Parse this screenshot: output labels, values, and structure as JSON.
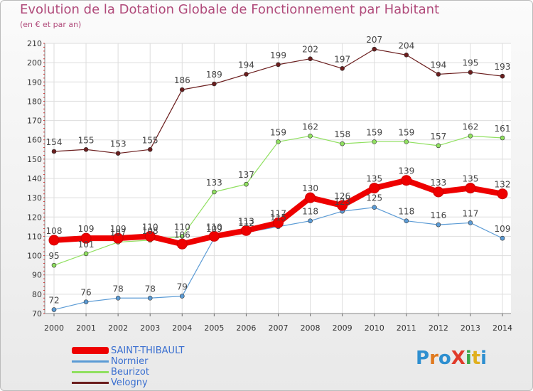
{
  "title": "Evolution de la Dotation Globale de Fonctionnement par Habitant",
  "subtitle": "(en € et par an)",
  "logo_text": "ProXiti",
  "logo_colors": [
    "#2e8fd0",
    "#e07a1f",
    "#2e8fd0",
    "#e03a2a",
    "#3aa84a",
    "#e0b01f",
    "#2e8fd0"
  ],
  "chart_data": {
    "type": "line",
    "x": [
      2000,
      2001,
      2002,
      2003,
      2004,
      2005,
      2006,
      2007,
      2008,
      2009,
      2010,
      2011,
      2012,
      2013,
      2014
    ],
    "ylim": [
      70,
      210
    ],
    "yticks": [
      70,
      80,
      90,
      100,
      110,
      120,
      130,
      140,
      150,
      160,
      170,
      180,
      190,
      200,
      210
    ],
    "grid": true,
    "legend_position": "bottom-left",
    "series": [
      {
        "name": "SAINT-THIBAULT",
        "color": "#ee0000",
        "values": [
          108,
          109,
          109,
          110,
          106,
          110,
          113,
          117,
          130,
          126,
          135,
          139,
          133,
          135,
          132
        ]
      },
      {
        "name": "Normier",
        "color": "#5b9bd5",
        "values": [
          72,
          76,
          78,
          78,
          79,
          109,
          112,
          115,
          118,
          123,
          125,
          118,
          116,
          117,
          109
        ]
      },
      {
        "name": "Beurizot",
        "color": "#90e060",
        "values": [
          95,
          101,
          107,
          108,
          110,
          133,
          137,
          159,
          162,
          158,
          159,
          159,
          157,
          162,
          161
        ]
      },
      {
        "name": "Velogny",
        "color": "#6b1e1e",
        "values": [
          154,
          155,
          153,
          155,
          186,
          189,
          194,
          199,
          202,
          197,
          207,
          204,
          194,
          195,
          193
        ]
      }
    ]
  }
}
